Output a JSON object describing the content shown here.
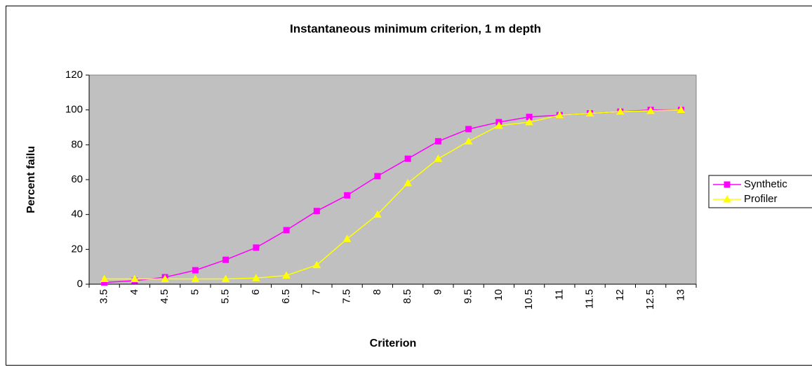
{
  "chart_data": {
    "type": "line",
    "title": "Instantaneous minimum criterion, 1 m depth",
    "xlabel": "Criterion",
    "ylabel": "Percent failu",
    "categories": [
      "3.5",
      "4",
      "4.5",
      "5",
      "5.5",
      "6",
      "6.5",
      "7",
      "7.5",
      "8",
      "8.5",
      "9",
      "9.5",
      "10",
      "10.5",
      "11",
      "11.5",
      "12",
      "12.5",
      "13"
    ],
    "series": [
      {
        "name": "Synthetic",
        "color": "#ff00ff",
        "marker": "square",
        "values": [
          1,
          2,
          4,
          8,
          14,
          21,
          31,
          42,
          51,
          62,
          72,
          82,
          89,
          93,
          96,
          97,
          98,
          99,
          100,
          100
        ]
      },
      {
        "name": "Profiler",
        "color": "#ffff00",
        "marker": "triangle",
        "values": [
          3,
          3,
          3,
          3,
          3,
          3.5,
          5,
          11,
          26,
          40,
          58,
          72,
          82,
          91,
          93,
          97,
          98,
          99,
          99.5,
          100
        ]
      }
    ],
    "ylim": [
      0,
      120
    ],
    "yticks": [
      0,
      20,
      40,
      60,
      80,
      100,
      120
    ],
    "plot_background": "#c0c0c0",
    "legend": "right"
  }
}
